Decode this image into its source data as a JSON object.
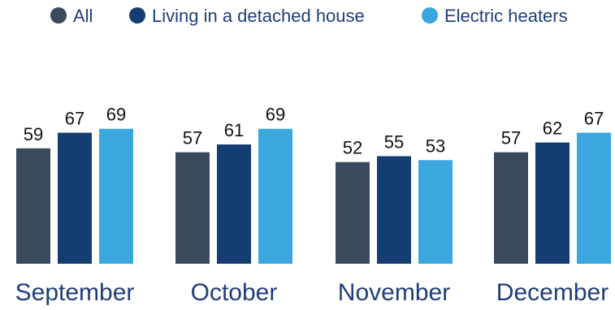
{
  "chart_data": {
    "type": "bar",
    "categories": [
      "September",
      "October",
      "November",
      "December"
    ],
    "series": [
      {
        "name": "All",
        "values": [
          59,
          57,
          52,
          57
        ],
        "color": "#3a4a5c"
      },
      {
        "name": "Living in a detached house",
        "values": [
          67,
          61,
          55,
          62
        ],
        "color": "#143d73"
      },
      {
        "name": "Electric heaters",
        "values": [
          69,
          69,
          53,
          67
        ],
        "color": "#3aa7df"
      }
    ],
    "title": "",
    "xlabel": "",
    "ylabel": "",
    "ylim": [
      0,
      100
    ],
    "grid": false,
    "legend": "top",
    "data_labels": true
  }
}
